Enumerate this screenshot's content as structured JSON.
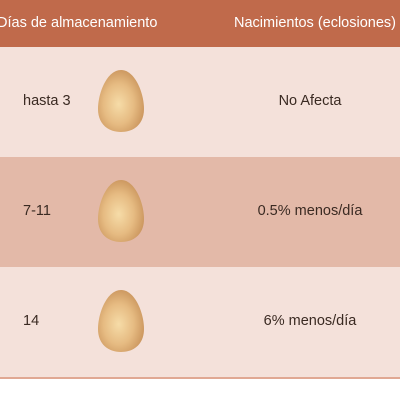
{
  "header": {
    "col_days": "Días de almacenamiento",
    "col_births": "Nacimientos (eclosiones)"
  },
  "rows": [
    {
      "days": "hasta 3",
      "icon": "egg-icon",
      "effect": "No Afecta"
    },
    {
      "days": "7-11",
      "icon": "egg-icon",
      "effect": "0.5% menos/día"
    },
    {
      "days": "14",
      "icon": "egg-icon",
      "effect": "6% menos/día"
    }
  ],
  "colors": {
    "header_bg": "#c06a4b",
    "row_light": "#f4e1da",
    "row_dark": "#e3b9a8",
    "egg": "#e2b57d"
  }
}
